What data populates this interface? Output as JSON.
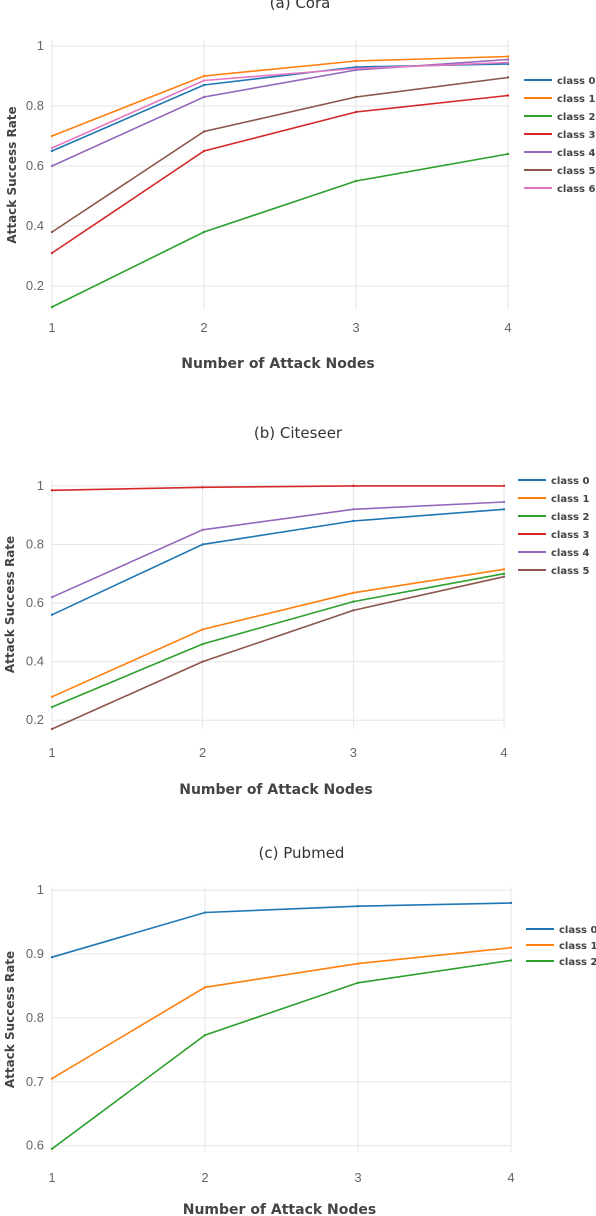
{
  "chart_data": [
    {
      "type": "line",
      "title": "(a) Cora",
      "xlabel": "Number of Attack Nodes",
      "ylabel": "Attack Success Rate",
      "x": [
        1,
        2,
        3,
        4
      ],
      "xticks": [
        "1",
        "2",
        "3",
        "4"
      ],
      "ylim": [
        0.12,
        1.02
      ],
      "yticks": [
        0.2,
        0.4,
        0.6,
        0.8,
        1
      ],
      "ytick_labels": [
        "0.2",
        "0.4",
        "0.6",
        "0.8",
        "1"
      ],
      "grid": true,
      "legend_position": "right",
      "series": [
        {
          "name": "class 0",
          "color": "#1f77b4",
          "values": [
            0.65,
            0.87,
            0.93,
            0.94
          ]
        },
        {
          "name": "class 1",
          "color": "#ff7f0e",
          "values": [
            0.7,
            0.9,
            0.95,
            0.965
          ]
        },
        {
          "name": "class 2",
          "color": "#2ca02c",
          "values": [
            0.13,
            0.38,
            0.55,
            0.64
          ]
        },
        {
          "name": "class 3",
          "color": "#d62728",
          "values": [
            0.31,
            0.65,
            0.78,
            0.835
          ]
        },
        {
          "name": "class 4",
          "color": "#9467bd",
          "values": [
            0.6,
            0.83,
            0.92,
            0.955
          ]
        },
        {
          "name": "class 5",
          "color": "#8c564b",
          "values": [
            0.38,
            0.715,
            0.83,
            0.895
          ]
        },
        {
          "name": "class 6",
          "color": "#e377c2",
          "values": [
            0.66,
            0.885,
            0.925,
            0.945
          ]
        }
      ]
    },
    {
      "type": "line",
      "title": "(b) Citeseer",
      "xlabel": "Number of Attack Nodes",
      "ylabel": "Attack Success Rate",
      "x": [
        1,
        2,
        3,
        4
      ],
      "xticks": [
        "1",
        "2",
        "3",
        "4"
      ],
      "ylim": [
        0.17,
        1.02
      ],
      "yticks": [
        0.2,
        0.4,
        0.6,
        0.8,
        1
      ],
      "ytick_labels": [
        "0.2",
        "0.4",
        "0.6",
        "0.8",
        "1"
      ],
      "grid": true,
      "legend_position": "right",
      "series": [
        {
          "name": "class 0",
          "color": "#1f77b4",
          "values": [
            0.56,
            0.8,
            0.88,
            0.92
          ]
        },
        {
          "name": "class 1",
          "color": "#ff7f0e",
          "values": [
            0.28,
            0.51,
            0.635,
            0.715
          ]
        },
        {
          "name": "class 2",
          "color": "#2ca02c",
          "values": [
            0.245,
            0.46,
            0.605,
            0.7
          ]
        },
        {
          "name": "class 3",
          "color": "#d62728",
          "values": [
            0.985,
            0.995,
            1.0,
            1.0
          ]
        },
        {
          "name": "class 4",
          "color": "#9467bd",
          "values": [
            0.62,
            0.85,
            0.92,
            0.945
          ]
        },
        {
          "name": "class 5",
          "color": "#8c564b",
          "values": [
            0.17,
            0.4,
            0.575,
            0.69
          ]
        }
      ]
    },
    {
      "type": "line",
      "title": "(c) Pubmed",
      "xlabel": "Number of Attack Nodes",
      "ylabel": "Attack Success Rate",
      "x": [
        1,
        2,
        3,
        4
      ],
      "xticks": [
        "1",
        "2",
        "3",
        "4"
      ],
      "ylim": [
        0.59,
        1.005
      ],
      "yticks": [
        0.6,
        0.7,
        0.8,
        0.9,
        1
      ],
      "ytick_labels": [
        "0.6",
        "0.7",
        "0.8",
        "0.9",
        "1"
      ],
      "grid": true,
      "legend_position": "right",
      "series": [
        {
          "name": "class 0",
          "color": "#1f77b4",
          "values": [
            0.895,
            0.965,
            0.975,
            0.98
          ]
        },
        {
          "name": "class 1",
          "color": "#ff7f0e",
          "values": [
            0.705,
            0.848,
            0.885,
            0.91
          ]
        },
        {
          "name": "class 2",
          "color": "#2ca02c",
          "values": [
            0.595,
            0.773,
            0.855,
            0.89
          ]
        }
      ]
    }
  ]
}
